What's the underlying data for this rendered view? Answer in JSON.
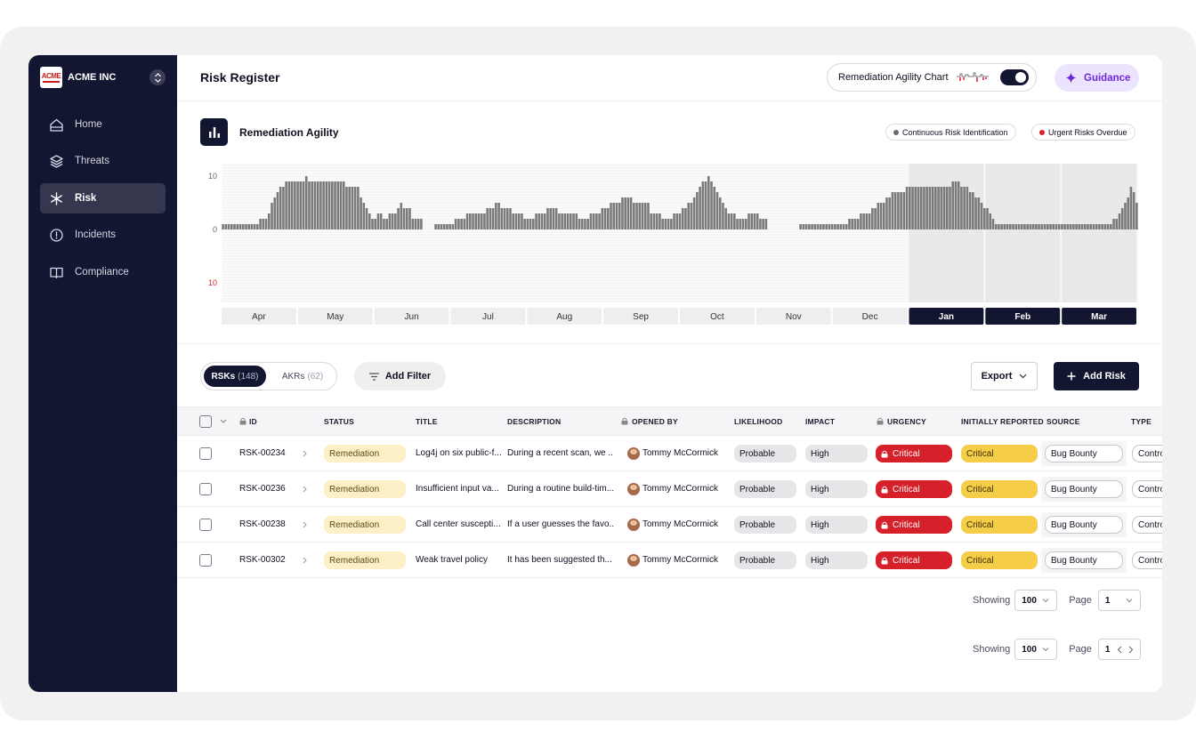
{
  "sidebar": {
    "brand_logo_text": "ACME",
    "brand_name": "ACME INC",
    "items": [
      {
        "label": "Home",
        "icon": "home-icon"
      },
      {
        "label": "Threats",
        "icon": "layers-icon"
      },
      {
        "label": "Risk",
        "icon": "asterisk-icon",
        "active": true
      },
      {
        "label": "Incidents",
        "icon": "alert-circle-icon"
      },
      {
        "label": "Compliance",
        "icon": "book-icon"
      }
    ]
  },
  "header": {
    "title": "Risk Register",
    "chart_toggle_label": "Remediation Agility Chart",
    "guidance_label": "Guidance"
  },
  "chart_panel": {
    "title": "Remediation Agility",
    "legend": [
      "Continuous Risk Identification",
      "Urgent Risks Overdue"
    ],
    "colors": {
      "identification": "#6b6b6b",
      "overdue": "#d6212d",
      "highlight": "#131630"
    }
  },
  "chart_data": {
    "type": "bar",
    "y_tick_labels": [
      "10",
      "0",
      "10"
    ],
    "months": [
      "Apr",
      "May",
      "Jun",
      "Jul",
      "Aug",
      "Sep",
      "Oct",
      "Nov",
      "Dec",
      "Jan",
      "Feb",
      "Mar"
    ],
    "highlighted_months": [
      "Jan",
      "Feb",
      "Mar"
    ],
    "series": [
      {
        "name": "Continuous Risk Identification",
        "values": [
          1,
          1,
          1,
          1,
          1,
          1,
          1,
          1,
          1,
          1,
          1,
          1,
          1,
          2,
          2,
          2,
          3,
          5,
          6,
          7,
          8,
          8,
          9,
          9,
          9,
          9,
          9,
          9,
          9,
          10,
          9,
          9,
          9,
          9,
          9,
          9,
          9,
          9,
          9,
          9,
          9,
          9,
          9,
          8,
          8,
          8,
          8,
          8,
          6,
          5,
          4,
          3,
          2,
          2,
          3,
          3,
          2,
          2,
          3,
          3,
          3,
          4,
          5,
          4,
          4,
          4,
          2,
          2,
          2,
          2,
          0,
          0,
          0,
          0,
          1,
          1,
          1,
          1,
          1,
          1,
          1,
          2,
          2,
          2,
          2,
          3,
          3,
          3,
          3,
          3,
          3,
          3,
          4,
          4,
          4,
          5,
          5,
          4,
          4,
          4,
          4,
          3,
          3,
          3,
          3,
          2,
          2,
          2,
          2,
          3,
          3,
          3,
          3,
          4,
          4,
          4,
          4,
          3,
          3,
          3,
          3,
          3,
          3,
          3,
          2,
          2,
          2,
          2,
          3,
          3,
          3,
          3,
          4,
          4,
          4,
          5,
          5,
          5,
          5,
          6,
          6,
          6,
          6,
          5,
          5,
          5,
          5,
          5,
          5,
          3,
          3,
          3,
          3,
          2,
          2,
          2,
          2,
          3,
          3,
          3,
          4,
          4,
          5,
          5,
          6,
          7,
          8,
          9,
          9,
          10,
          9,
          8,
          7,
          6,
          5,
          4,
          3,
          3,
          3,
          2,
          2,
          2,
          2,
          3,
          3,
          3,
          3,
          2,
          2,
          2,
          0,
          0,
          0,
          0,
          0,
          0,
          0,
          0,
          0,
          0,
          0,
          1,
          1,
          1,
          1,
          1,
          1,
          1,
          1,
          1,
          1,
          1,
          1,
          1,
          1,
          1,
          1,
          1,
          2,
          2,
          2,
          2,
          3,
          3,
          3,
          3,
          4,
          4,
          5,
          5,
          5,
          6,
          6,
          7,
          7,
          7,
          7,
          7,
          8,
          8,
          8,
          8,
          8,
          8,
          8,
          8,
          8,
          8,
          8,
          8,
          8,
          8,
          8,
          8,
          9,
          9,
          9,
          8,
          8,
          8,
          7,
          7,
          6,
          6,
          5,
          4,
          4,
          3,
          2,
          1,
          1,
          1,
          1,
          1,
          1,
          1,
          1,
          1,
          1,
          1,
          1,
          1,
          1,
          1,
          1,
          1,
          1,
          1,
          1,
          1,
          1,
          1,
          1,
          1,
          1,
          1,
          1,
          1,
          1,
          1,
          1,
          1,
          1,
          1,
          1,
          1,
          1,
          1,
          1,
          1,
          2,
          2,
          3,
          4,
          5,
          6,
          8,
          7,
          5
        ]
      },
      {
        "name": "Urgent Risks Overdue",
        "values": [
          0,
          0,
          0,
          0,
          0,
          0,
          0,
          0,
          0,
          0,
          0,
          0,
          0,
          0,
          0,
          0,
          0,
          0,
          0,
          0,
          0,
          0,
          0,
          0,
          0,
          0,
          0,
          0,
          0,
          0,
          0,
          0,
          0,
          0,
          0,
          0,
          0,
          0,
          0,
          0,
          0,
          0,
          0,
          0,
          0,
          0,
          0,
          0,
          0,
          0,
          0,
          0,
          0,
          0,
          0,
          0,
          0,
          0,
          0,
          0,
          0,
          0,
          0,
          0,
          0,
          0,
          0,
          0,
          0,
          0,
          0,
          0,
          0,
          0,
          0,
          0,
          0,
          0,
          0,
          0,
          0,
          0,
          0,
          0,
          0,
          0,
          0,
          0,
          0,
          0,
          0,
          0,
          0,
          0,
          0,
          0,
          0,
          0,
          0,
          0,
          0,
          0,
          0,
          0,
          0,
          0,
          0,
          0,
          0,
          0,
          0,
          0,
          0,
          0,
          0,
          0,
          0,
          0,
          0,
          0,
          0,
          0,
          0,
          0,
          0,
          0,
          0,
          0,
          0,
          0,
          0,
          0,
          0,
          0,
          0,
          0,
          0,
          0,
          0,
          0,
          0,
          0,
          0,
          0,
          0,
          0,
          0,
          0,
          0,
          0,
          0,
          0,
          0,
          0,
          0,
          0,
          0,
          0,
          0,
          0,
          0,
          0,
          0,
          0,
          0,
          0,
          0,
          0,
          0,
          0,
          0,
          0,
          0,
          0,
          0,
          0,
          0,
          0,
          0,
          0,
          0,
          0,
          0,
          0,
          0,
          0,
          0,
          0,
          0,
          0,
          0,
          0,
          0,
          0,
          0,
          0,
          0,
          0,
          0,
          0,
          0,
          0,
          0,
          0,
          0,
          0,
          0,
          0,
          0,
          0,
          0,
          0,
          0,
          0,
          0,
          0,
          0,
          0,
          0,
          0,
          0,
          0,
          0,
          0,
          0,
          0,
          0,
          0,
          0,
          0,
          0,
          0,
          0,
          0,
          0,
          0,
          0,
          0,
          0,
          0,
          0,
          0,
          0,
          0,
          0,
          0,
          0,
          0,
          0,
          0,
          0,
          0,
          0,
          0,
          0,
          0,
          0,
          0,
          0,
          0,
          0,
          0,
          0,
          0,
          0,
          0,
          0,
          0,
          0,
          0,
          0,
          0,
          0,
          0,
          0,
          0,
          0,
          0,
          0,
          0,
          0,
          0,
          0,
          0,
          0,
          0,
          0,
          0,
          0,
          0,
          0,
          0,
          0,
          0,
          0,
          0,
          0,
          0,
          0,
          0,
          0,
          0,
          0,
          0,
          0,
          0,
          0,
          0,
          0,
          0,
          0,
          0
        ]
      }
    ]
  },
  "segments": {
    "a_label": "RSKs",
    "a_count": "(148)",
    "b_label": "AKRs",
    "b_count": "(62)"
  },
  "toolbar": {
    "add_filter": "Add Filter",
    "export": "Export",
    "add_risk": "Add Risk"
  },
  "columns": [
    "ID",
    "STATUS",
    "TITLE",
    "DESCRIPTION",
    "OPENED BY",
    "LIKELIHOOD",
    "IMPACT",
    "URGENCY",
    "INITIALLY REPORTED",
    "SOURCE",
    "TYPE"
  ],
  "rows": [
    {
      "id": "RSK-00234",
      "status": "Remediation",
      "title": "Log4j on six public-f...",
      "description": "During a recent scan, we ...",
      "opened_by": "Tommy McCormick",
      "likelihood": "Probable",
      "impact": "High",
      "urgency": "Critical",
      "initially_reported": "Critical",
      "source": "Bug Bounty",
      "type": "Contro"
    },
    {
      "id": "RSK-00236",
      "status": "Remediation",
      "title": "Insufficient input va...",
      "description": "During a routine build-tim...",
      "opened_by": "Tommy McCormick",
      "likelihood": "Probable",
      "impact": "High",
      "urgency": "Critical",
      "initially_reported": "Critical",
      "source": "Bug Bounty",
      "type": "Contro"
    },
    {
      "id": "RSK-00238",
      "status": "Remediation",
      "title": "Call center suscepti...",
      "description": "If a user guesses the favo...",
      "opened_by": "Tommy McCormick",
      "likelihood": "Probable",
      "impact": "High",
      "urgency": "Critical",
      "initially_reported": "Critical",
      "source": "Bug Bounty",
      "type": "Contro"
    },
    {
      "id": "RSK-00302",
      "status": "Remediation",
      "title": "Weak travel policy",
      "description": "It has been suggested th...",
      "opened_by": "Tommy McCormick",
      "likelihood": "Probable",
      "impact": "High",
      "urgency": "Critical",
      "initially_reported": "Critical",
      "source": "Bug Bounty",
      "type": "Contro"
    }
  ],
  "pagination": [
    {
      "showing_label": "Showing",
      "showing_value": "100",
      "page_label": "Page",
      "page_value": "1"
    },
    {
      "showing_label": "Showing",
      "showing_value": "100",
      "page_label": "Page",
      "page_value": "1"
    }
  ]
}
